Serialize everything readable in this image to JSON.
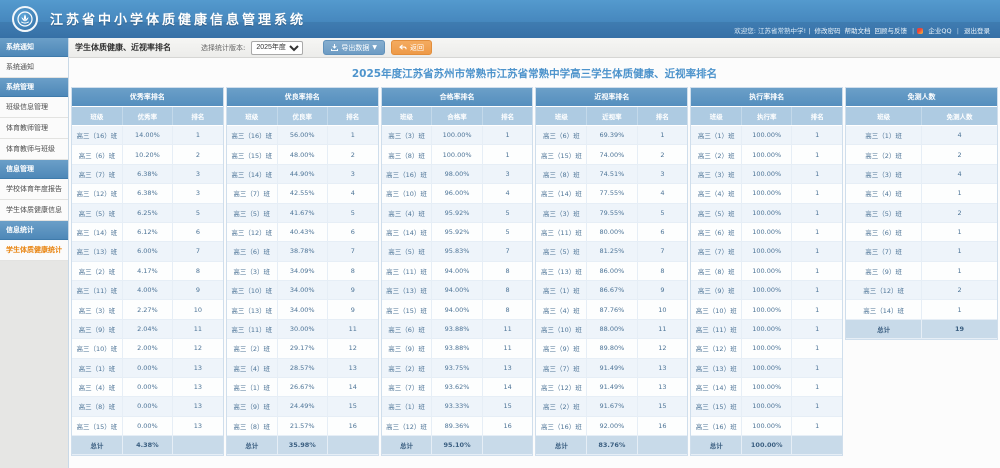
{
  "header": {
    "system_title": "江苏省中小学体质健康信息管理系统",
    "welcome": "欢迎您: 江苏省常熟中学! |",
    "links": [
      "修改密码",
      "帮助文档",
      "回顾与反馈"
    ],
    "qq_link": "企业QQ",
    "logout_link": "退出登录"
  },
  "sidebar": {
    "groups": [
      {
        "header": "系统通知",
        "items": [
          "系统通知"
        ]
      },
      {
        "header": "系统管理",
        "items": [
          "班级信息管理",
          "体育教师管理",
          "体育教师与班级"
        ]
      },
      {
        "header": "信息管理",
        "items": [
          "学校体育年度报告",
          "学生体质健康信息"
        ]
      },
      {
        "header": "信息统计",
        "items": [
          "学生体质健康统计"
        ]
      }
    ],
    "active_item": "学生体质健康统计"
  },
  "toolbar": {
    "page_title": "学生体质健康、近视率排名",
    "version_label": "选择统计版本:",
    "version_value": "2025年度",
    "export_label": "导出数据",
    "back_label": "返回"
  },
  "main": {
    "title": "2025年度江苏省苏州市常熟市江苏省常熟中学高三学生体质健康、近视率排名"
  },
  "tables": [
    {
      "title": "优秀率排名",
      "columns": [
        "班级",
        "优秀率",
        "排名"
      ],
      "rows": [
        [
          "高三（16）班",
          "14.00%",
          "1"
        ],
        [
          "高三（6）班",
          "10.20%",
          "2"
        ],
        [
          "高三（7）班",
          "6.38%",
          "3"
        ],
        [
          "高三（12）班",
          "6.38%",
          "3"
        ],
        [
          "高三（5）班",
          "6.25%",
          "5"
        ],
        [
          "高三（14）班",
          "6.12%",
          "6"
        ],
        [
          "高三（13）班",
          "6.00%",
          "7"
        ],
        [
          "高三（2）班",
          "4.17%",
          "8"
        ],
        [
          "高三（11）班",
          "4.00%",
          "9"
        ],
        [
          "高三（3）班",
          "2.27%",
          "10"
        ],
        [
          "高三（9）班",
          "2.04%",
          "11"
        ],
        [
          "高三（10）班",
          "2.00%",
          "12"
        ],
        [
          "高三（1）班",
          "0.00%",
          "13"
        ],
        [
          "高三（4）班",
          "0.00%",
          "13"
        ],
        [
          "高三（8）班",
          "0.00%",
          "13"
        ],
        [
          "高三（15）班",
          "0.00%",
          "13"
        ]
      ],
      "total": [
        "总计",
        "4.38%",
        ""
      ]
    },
    {
      "title": "优良率排名",
      "columns": [
        "班级",
        "优良率",
        "排名"
      ],
      "rows": [
        [
          "高三（16）班",
          "56.00%",
          "1"
        ],
        [
          "高三（15）班",
          "48.00%",
          "2"
        ],
        [
          "高三（14）班",
          "44.90%",
          "3"
        ],
        [
          "高三（7）班",
          "42.55%",
          "4"
        ],
        [
          "高三（5）班",
          "41.67%",
          "5"
        ],
        [
          "高三（12）班",
          "40.43%",
          "6"
        ],
        [
          "高三（6）班",
          "38.78%",
          "7"
        ],
        [
          "高三（3）班",
          "34.09%",
          "8"
        ],
        [
          "高三（10）班",
          "34.00%",
          "9"
        ],
        [
          "高三（13）班",
          "34.00%",
          "9"
        ],
        [
          "高三（11）班",
          "30.00%",
          "11"
        ],
        [
          "高三（2）班",
          "29.17%",
          "12"
        ],
        [
          "高三（4）班",
          "28.57%",
          "13"
        ],
        [
          "高三（1）班",
          "26.67%",
          "14"
        ],
        [
          "高三（9）班",
          "24.49%",
          "15"
        ],
        [
          "高三（8）班",
          "21.57%",
          "16"
        ]
      ],
      "total": [
        "总计",
        "35.98%",
        ""
      ]
    },
    {
      "title": "合格率排名",
      "columns": [
        "班级",
        "合格率",
        "排名"
      ],
      "rows": [
        [
          "高三（3）班",
          "100.00%",
          "1"
        ],
        [
          "高三（8）班",
          "100.00%",
          "1"
        ],
        [
          "高三（16）班",
          "98.00%",
          "3"
        ],
        [
          "高三（10）班",
          "96.00%",
          "4"
        ],
        [
          "高三（4）班",
          "95.92%",
          "5"
        ],
        [
          "高三（14）班",
          "95.92%",
          "5"
        ],
        [
          "高三（5）班",
          "95.83%",
          "7"
        ],
        [
          "高三（11）班",
          "94.00%",
          "8"
        ],
        [
          "高三（13）班",
          "94.00%",
          "8"
        ],
        [
          "高三（15）班",
          "94.00%",
          "8"
        ],
        [
          "高三（6）班",
          "93.88%",
          "11"
        ],
        [
          "高三（9）班",
          "93.88%",
          "11"
        ],
        [
          "高三（2）班",
          "93.75%",
          "13"
        ],
        [
          "高三（7）班",
          "93.62%",
          "14"
        ],
        [
          "高三（1）班",
          "93.33%",
          "15"
        ],
        [
          "高三（12）班",
          "89.36%",
          "16"
        ]
      ],
      "total": [
        "总计",
        "95.10%",
        ""
      ]
    },
    {
      "title": "近视率排名",
      "columns": [
        "班级",
        "近视率",
        "排名"
      ],
      "rows": [
        [
          "高三（6）班",
          "69.39%",
          "1"
        ],
        [
          "高三（15）班",
          "74.00%",
          "2"
        ],
        [
          "高三（8）班",
          "74.51%",
          "3"
        ],
        [
          "高三（14）班",
          "77.55%",
          "4"
        ],
        [
          "高三（3）班",
          "79.55%",
          "5"
        ],
        [
          "高三（11）班",
          "80.00%",
          "6"
        ],
        [
          "高三（5）班",
          "81.25%",
          "7"
        ],
        [
          "高三（13）班",
          "86.00%",
          "8"
        ],
        [
          "高三（1）班",
          "86.67%",
          "9"
        ],
        [
          "高三（4）班",
          "87.76%",
          "10"
        ],
        [
          "高三（10）班",
          "88.00%",
          "11"
        ],
        [
          "高三（9）班",
          "89.80%",
          "12"
        ],
        [
          "高三（7）班",
          "91.49%",
          "13"
        ],
        [
          "高三（12）班",
          "91.49%",
          "13"
        ],
        [
          "高三（2）班",
          "91.67%",
          "15"
        ],
        [
          "高三（16）班",
          "92.00%",
          "16"
        ]
      ],
      "total": [
        "总计",
        "83.76%",
        ""
      ]
    },
    {
      "title": "执行率排名",
      "columns": [
        "班级",
        "执行率",
        "排名"
      ],
      "rows": [
        [
          "高三（1）班",
          "100.00%",
          "1"
        ],
        [
          "高三（2）班",
          "100.00%",
          "1"
        ],
        [
          "高三（3）班",
          "100.00%",
          "1"
        ],
        [
          "高三（4）班",
          "100.00%",
          "1"
        ],
        [
          "高三（5）班",
          "100.00%",
          "1"
        ],
        [
          "高三（6）班",
          "100.00%",
          "1"
        ],
        [
          "高三（7）班",
          "100.00%",
          "1"
        ],
        [
          "高三（8）班",
          "100.00%",
          "1"
        ],
        [
          "高三（9）班",
          "100.00%",
          "1"
        ],
        [
          "高三（10）班",
          "100.00%",
          "1"
        ],
        [
          "高三（11）班",
          "100.00%",
          "1"
        ],
        [
          "高三（12）班",
          "100.00%",
          "1"
        ],
        [
          "高三（13）班",
          "100.00%",
          "1"
        ],
        [
          "高三（14）班",
          "100.00%",
          "1"
        ],
        [
          "高三（15）班",
          "100.00%",
          "1"
        ],
        [
          "高三（16）班",
          "100.00%",
          "1"
        ]
      ],
      "total": [
        "总计",
        "100.00%",
        ""
      ]
    },
    {
      "title": "免测人数",
      "columns": [
        "班级",
        "免测人数"
      ],
      "rows": [
        [
          "高三（1）班",
          "4"
        ],
        [
          "高三（2）班",
          "2"
        ],
        [
          "高三（3）班",
          "4"
        ],
        [
          "高三（4）班",
          "1"
        ],
        [
          "高三（5）班",
          "2"
        ],
        [
          "高三（6）班",
          "1"
        ],
        [
          "高三（7）班",
          "1"
        ],
        [
          "高三（9）班",
          "1"
        ],
        [
          "高三（12）班",
          "2"
        ],
        [
          "高三（14）班",
          "1"
        ]
      ],
      "total": [
        "总计",
        "19"
      ]
    }
  ]
}
